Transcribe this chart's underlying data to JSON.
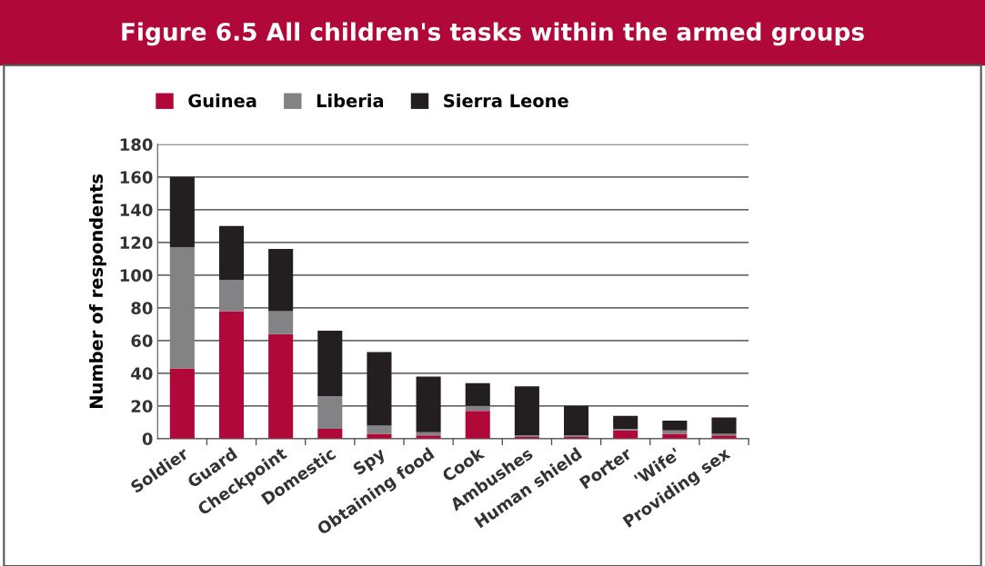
{
  "chart_data": {
    "type": "bar",
    "title": "Figure 6.5 All children's tasks within the armed groups",
    "ylabel": "Number of respondents",
    "categories": [
      "Soldier",
      "Guard",
      "Checkpoint",
      "Domestic",
      "Spy",
      "Obtaining food",
      "Cook",
      "Ambushes",
      "Human shield",
      "Porter",
      "'Wife'",
      "Providing sex"
    ],
    "series": [
      {
        "name": "Guinea",
        "color": "#b1083a",
        "values": [
          43,
          78,
          64,
          6,
          3,
          2,
          17,
          1,
          1,
          5,
          3,
          2
        ]
      },
      {
        "name": "Liberia",
        "color": "#838385",
        "values": [
          74,
          19,
          14,
          20,
          5,
          2,
          3,
          1,
          1,
          1,
          2,
          1
        ]
      },
      {
        "name": "Sierra Leone",
        "color": "#231f20",
        "values": [
          43,
          33,
          38,
          40,
          45,
          34,
          14,
          30,
          18,
          8,
          6,
          10
        ]
      }
    ],
    "stacked": true,
    "ylim": [
      0,
      180
    ],
    "yticks": [
      0,
      20,
      40,
      60,
      80,
      100,
      120,
      140,
      160,
      180
    ],
    "grid": "y",
    "legend": "top left"
  }
}
